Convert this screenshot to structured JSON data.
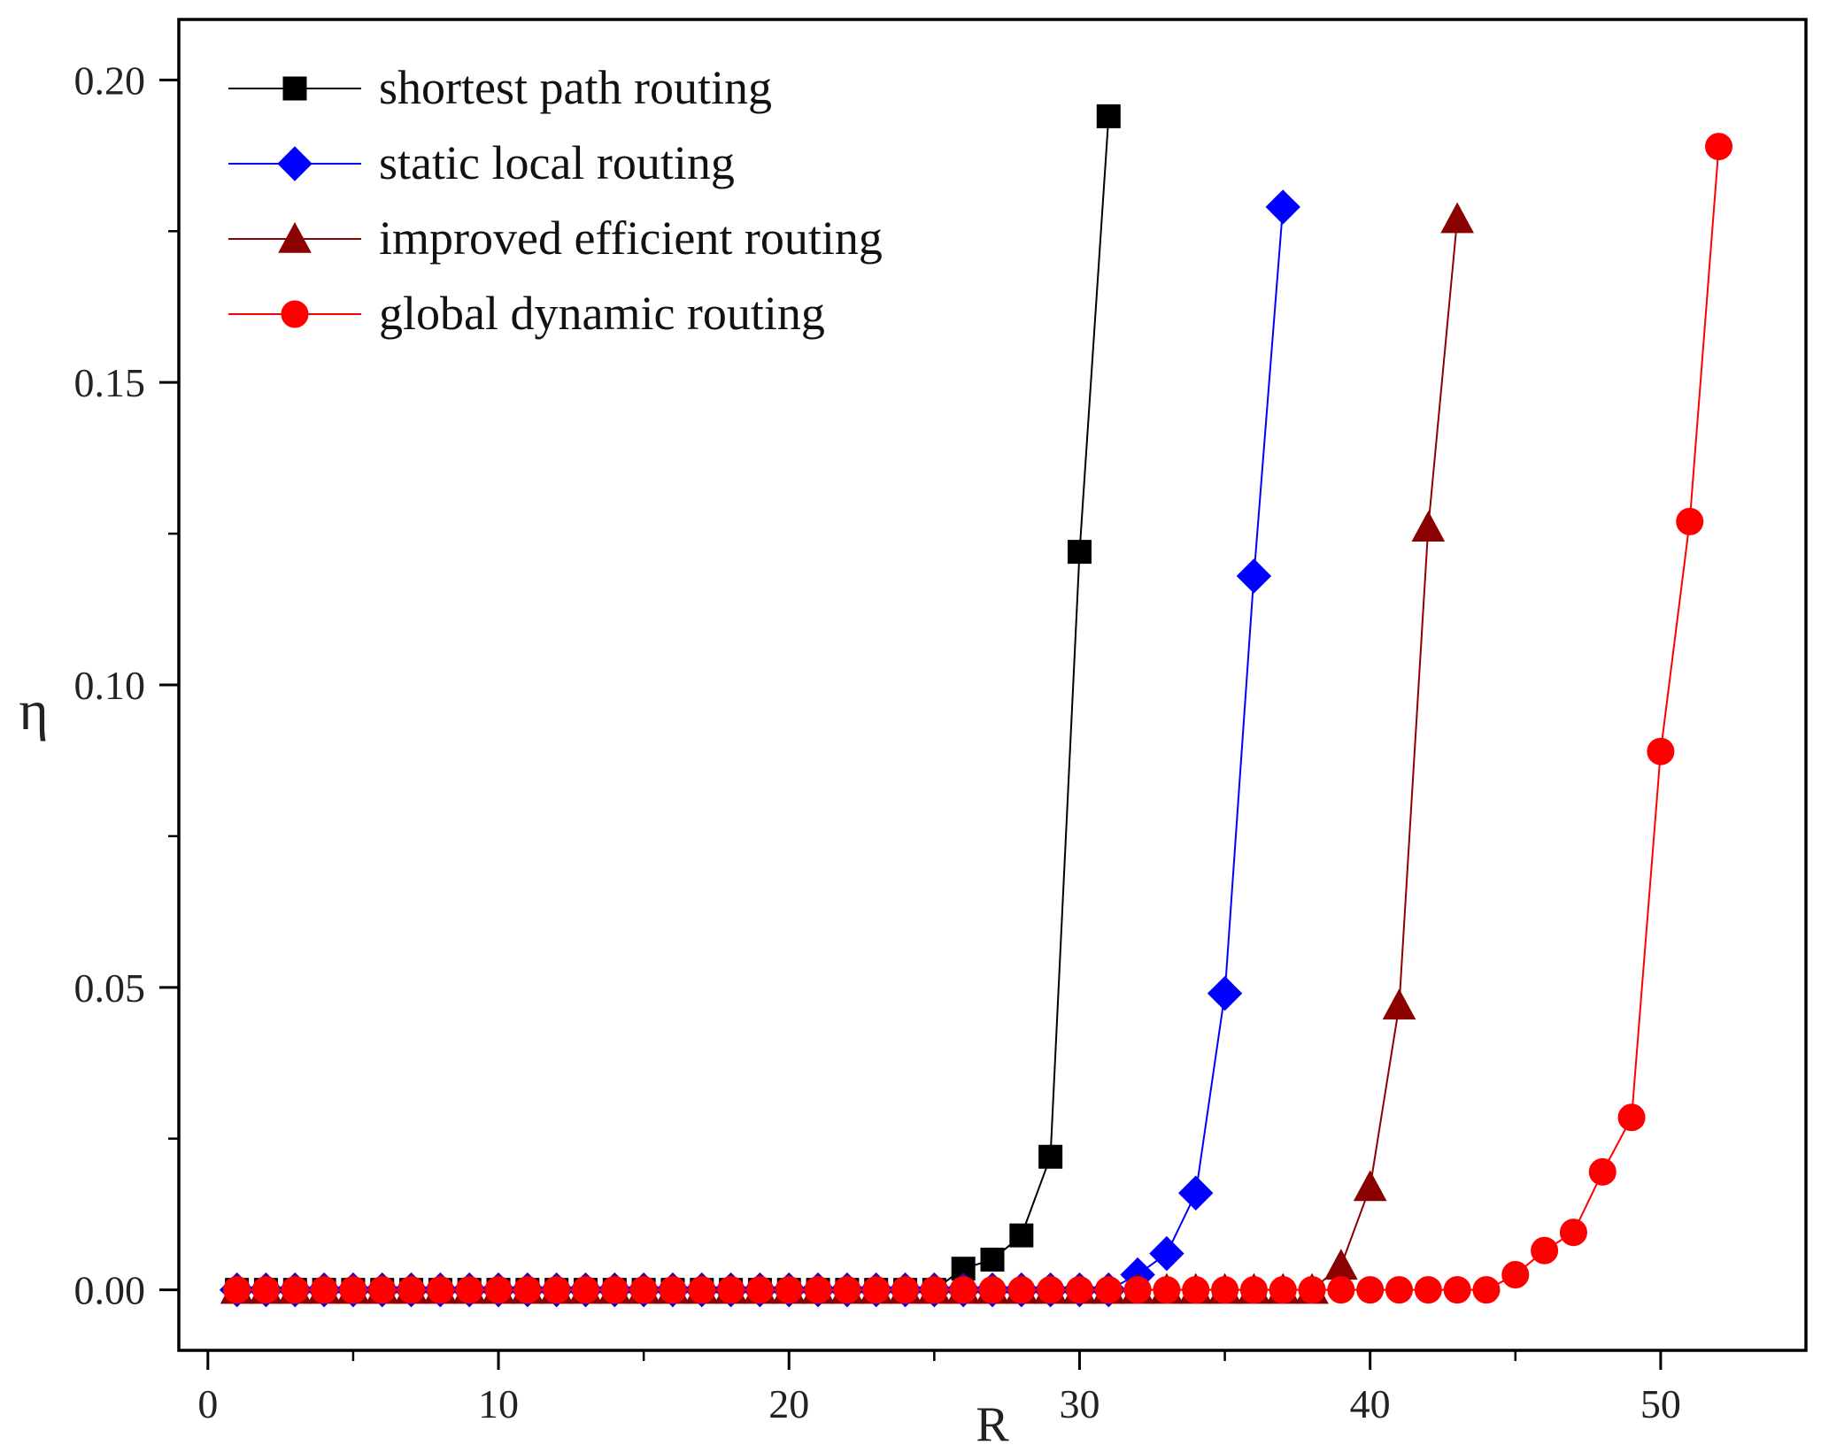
{
  "chart_data": {
    "type": "line",
    "title": "",
    "xlabel": "R",
    "ylabel": "η",
    "xlim": [
      -1,
      55
    ],
    "ylim": [
      -0.01,
      0.21
    ],
    "xticks": [
      0,
      10,
      20,
      30,
      40,
      50
    ],
    "xtick_labels": [
      "0",
      "10",
      "20",
      "30",
      "40",
      "50"
    ],
    "yticks": [
      0.0,
      0.05,
      0.1,
      0.15,
      0.2
    ],
    "ytick_labels": [
      "0.00",
      "0.05",
      "0.10",
      "0.15",
      "0.20"
    ],
    "grid": false,
    "legend_position": "top-left",
    "series": [
      {
        "name": "shortest path routing",
        "color": "#000000",
        "marker": "square",
        "x": [
          1,
          2,
          3,
          4,
          5,
          6,
          7,
          8,
          9,
          10,
          11,
          12,
          13,
          14,
          15,
          16,
          17,
          18,
          19,
          20,
          21,
          22,
          23,
          24,
          25,
          26,
          27,
          28,
          29,
          30,
          31
        ],
        "y": [
          0,
          0,
          0,
          0,
          0,
          0,
          0,
          0,
          0,
          0,
          0,
          0,
          0,
          0,
          0,
          0,
          0,
          0,
          0,
          0,
          0,
          0,
          0,
          0,
          0,
          0.0035,
          0.005,
          0.009,
          0.022,
          0.122,
          0.194
        ]
      },
      {
        "name": "static local routing",
        "color": "#0000ff",
        "marker": "diamond",
        "x": [
          1,
          2,
          3,
          4,
          5,
          6,
          7,
          8,
          9,
          10,
          11,
          12,
          13,
          14,
          15,
          16,
          17,
          18,
          19,
          20,
          21,
          22,
          23,
          24,
          25,
          26,
          27,
          28,
          29,
          30,
          31,
          32,
          33,
          34,
          35,
          36,
          37
        ],
        "y": [
          0,
          0,
          0,
          0,
          0,
          0,
          0,
          0,
          0,
          0,
          0,
          0,
          0,
          0,
          0,
          0,
          0,
          0,
          0,
          0,
          0,
          0,
          0,
          0,
          0,
          0,
          0,
          0,
          0,
          0,
          0,
          0.0025,
          0.006,
          0.016,
          0.049,
          0.118,
          0.179
        ]
      },
      {
        "name": "improved efficient routing",
        "color": "#8b0000",
        "marker": "triangle",
        "x": [
          1,
          2,
          3,
          4,
          5,
          6,
          7,
          8,
          9,
          10,
          11,
          12,
          13,
          14,
          15,
          16,
          17,
          18,
          19,
          20,
          21,
          22,
          23,
          24,
          25,
          26,
          27,
          28,
          29,
          30,
          31,
          32,
          33,
          34,
          35,
          36,
          37,
          38,
          39,
          40,
          41,
          42,
          43
        ],
        "y": [
          0,
          0,
          0,
          0,
          0,
          0,
          0,
          0,
          0,
          0,
          0,
          0,
          0,
          0,
          0,
          0,
          0,
          0,
          0,
          0,
          0,
          0,
          0,
          0,
          0,
          0,
          0,
          0,
          0,
          0,
          0,
          0,
          0,
          0,
          0,
          0,
          0,
          0,
          0.004,
          0.017,
          0.047,
          0.126,
          0.177
        ]
      },
      {
        "name": "global dynamic routing",
        "color": "#ff0000",
        "marker": "circle",
        "x": [
          1,
          2,
          3,
          4,
          5,
          6,
          7,
          8,
          9,
          10,
          11,
          12,
          13,
          14,
          15,
          16,
          17,
          18,
          19,
          20,
          21,
          22,
          23,
          24,
          25,
          26,
          27,
          28,
          29,
          30,
          31,
          32,
          33,
          34,
          35,
          36,
          37,
          38,
          39,
          40,
          41,
          42,
          43,
          44,
          45,
          46,
          47,
          48,
          49,
          50,
          51,
          52
        ],
        "y": [
          0,
          0,
          0,
          0,
          0,
          0,
          0,
          0,
          0,
          0,
          0,
          0,
          0,
          0,
          0,
          0,
          0,
          0,
          0,
          0,
          0,
          0,
          0,
          0,
          0,
          0,
          0,
          0,
          0,
          0,
          0,
          0,
          0,
          0,
          0,
          0,
          0,
          0,
          0,
          0,
          0,
          0,
          0,
          0,
          0.0025,
          0.0065,
          0.0095,
          0.0195,
          0.0285,
          0.089,
          0.127,
          0.189
        ]
      }
    ]
  }
}
